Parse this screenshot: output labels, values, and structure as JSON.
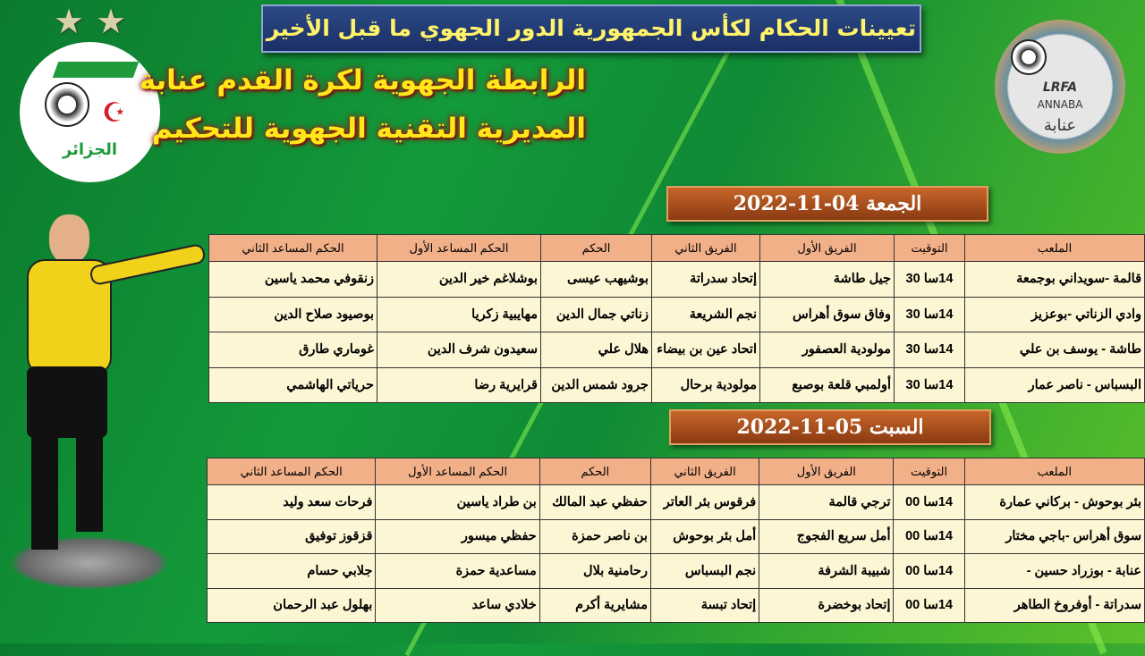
{
  "title": "تعيينات الحكام لكأس الجمهورية الدور الجهوي ما قبل الأخير",
  "league": "الرابطة الجهوية لكرة القدم عنابة",
  "directorate": "المديرية التقنية الجهوية للتحكيم",
  "left_logo_text": "الجزائر",
  "right_logo_text": [
    "LRFA",
    "ANNABA",
    "عنابة"
  ],
  "headers": [
    "الملعب",
    "التوقيت",
    "الفريق الأول",
    "الفريق الثاني",
    "الحكم",
    "الحكم المساعد الأول",
    "الحكم المساعد الثاني"
  ],
  "days": [
    {
      "date": "الجمعة 04-11-2022",
      "rows": [
        [
          "قالمة -سويداني بوجمعة",
          "14سا 30",
          "جيل طاشة",
          "إتحاد سدراتة",
          "بوشيهب عيسى",
          "بوشلاغم خير الدين",
          "زنقوفي محمد ياسين"
        ],
        [
          "وادي الزناتي -بوعزيز",
          "14سا 30",
          "وفاق سوق أهراس",
          "نجم الشريعة",
          "زناتي جمال الدين",
          "مهايبية زكريا",
          "بوصيود صلاح الدين"
        ],
        [
          "طاشة - يوسف بن علي",
          "14سا 30",
          "مولودية العصفور",
          "اتحاد عين بن بيضاء",
          "هلال علي",
          "سعيدون شرف الدين",
          "غوماري طارق"
        ],
        [
          "البسباس - ناصر عمار",
          "14سا 30",
          "أولمبي قلعة بوصبع",
          "مولودية برحال",
          "جرود شمس الدين",
          "قرايرية رضا",
          "حرياتي الهاشمي"
        ]
      ]
    },
    {
      "date": "السبت 05-11-2022",
      "rows": [
        [
          "بئر بوحوش - بركاني عمارة",
          "14سا 00",
          "ترجي قالمة",
          "فرقوس بئر العاتر",
          "حفظي عبد المالك",
          "بن طراد ياسين",
          "فرحات سعد وليد"
        ],
        [
          "سوق أهراس -باجي مختار",
          "14سا 00",
          "أمل سريع الفجوج",
          "أمل بئر بوحوش",
          "بن ناصر حمزة",
          "حفظي ميسور",
          "قزقوز توفيق"
        ],
        [
          "عنابة - بوزراد حسين -",
          "14سا 00",
          "شبيبة الشرفة",
          "نجم البسباس",
          "رحامنية بلال",
          "مساعدية حمزة",
          "جلابي حسام"
        ],
        [
          "سدراتة - أوفروخ الطاهر",
          "14سا 00",
          "إتحاد بوخضرة",
          "إتحاد تبسة",
          "مشايرية أكرم",
          "خلادي ساعد",
          "بهلول عبد الرحمان"
        ]
      ]
    }
  ]
}
